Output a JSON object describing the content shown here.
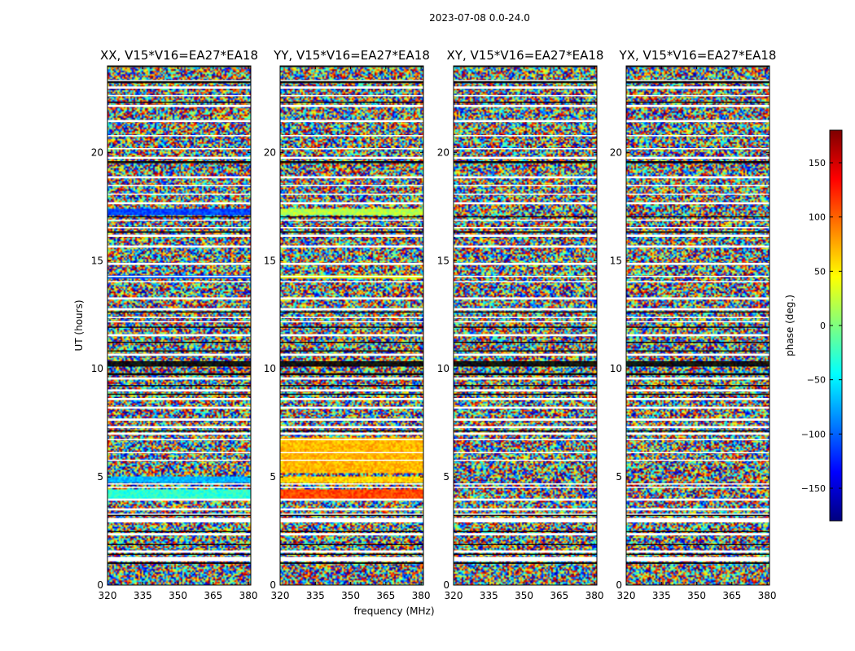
{
  "suptitle": "2023-07-08 0.0-24.0",
  "chart_data": {
    "type": "heatmap",
    "panels": [
      {
        "title": "XX, V15*V16=EA27*EA18"
      },
      {
        "title": "YY, V15*V16=EA27*EA18"
      },
      {
        "title": "XY, V15*V16=EA27*EA18"
      },
      {
        "title": "YX, V15*V16=EA27*EA18"
      }
    ],
    "xlabel": "frequency (MHz)",
    "ylabel": "UT (hours)",
    "xlim": [
      320,
      381
    ],
    "ylim": [
      0,
      24
    ],
    "xticks": [
      320,
      335,
      350,
      365,
      380
    ],
    "yticks": [
      0,
      5,
      10,
      15,
      20
    ],
    "colorbar": {
      "label": "phase (deg.)",
      "range": [
        -180,
        180
      ],
      "ticks": [
        150,
        100,
        50,
        0,
        -50,
        -100,
        -150
      ],
      "tick_labels": [
        "150",
        "100",
        "50",
        "0",
        "−50",
        "−100",
        "−150"
      ],
      "colormap": [
        "#00007f",
        "#0000ff",
        "#007fff",
        "#00ffff",
        "#7fff7f",
        "#ffff00",
        "#ff7f00",
        "#ff0000",
        "#7f0000"
      ]
    },
    "flagged_bands_hours": [
      [
        0,
        0.02
      ],
      [
        1.1,
        1.3
      ],
      [
        1.5,
        1.6
      ],
      [
        2.3,
        2.4
      ],
      [
        2.9,
        3.1
      ],
      [
        3.25,
        3.3
      ],
      [
        3.45,
        3.55
      ],
      [
        3.9,
        4.0
      ],
      [
        4.5,
        4.55
      ],
      [
        4.65,
        4.7
      ],
      [
        5.75,
        5.8
      ],
      [
        6.1,
        6.15
      ],
      [
        6.7,
        6.75
      ],
      [
        6.95,
        7.05
      ],
      [
        7.25,
        7.35
      ],
      [
        7.6,
        7.7
      ],
      [
        8.15,
        8.25
      ],
      [
        8.55,
        8.65
      ],
      [
        8.95,
        9.05
      ],
      [
        9.5,
        9.6
      ],
      [
        10.6,
        10.7
      ],
      [
        11.5,
        11.6
      ],
      [
        12.15,
        12.2
      ],
      [
        12.35,
        12.4
      ],
      [
        12.7,
        12.8
      ],
      [
        13.2,
        13.3
      ],
      [
        14.0,
        14.05
      ],
      [
        14.25,
        14.3
      ],
      [
        14.8,
        14.9
      ],
      [
        15.6,
        15.7
      ],
      [
        16.1,
        16.2
      ],
      [
        16.5,
        16.55
      ],
      [
        16.85,
        16.9
      ],
      [
        17.6,
        17.7
      ],
      [
        18.05,
        18.1
      ],
      [
        18.45,
        18.5
      ],
      [
        18.8,
        18.9
      ],
      [
        19.7,
        19.8
      ],
      [
        20.15,
        20.2
      ],
      [
        20.75,
        20.8
      ],
      [
        21.4,
        21.5
      ],
      [
        22.1,
        22.2
      ],
      [
        22.6,
        22.65
      ],
      [
        22.95,
        23.05
      ],
      [
        23.3,
        23.35
      ],
      [
        24.0,
        24.0
      ]
    ],
    "dark_bands_hours": [
      [
        0.98,
        1.05
      ],
      [
        1.4,
        1.45
      ],
      [
        1.85,
        1.9
      ],
      [
        2.45,
        2.5
      ],
      [
        3.2,
        3.25
      ],
      [
        7.1,
        7.15
      ],
      [
        8.8,
        8.85
      ],
      [
        9.2,
        9.25
      ],
      [
        9.7,
        9.8
      ],
      [
        10.1,
        10.35
      ],
      [
        10.8,
        10.85
      ],
      [
        11.2,
        11.25
      ],
      [
        11.9,
        11.95
      ],
      [
        12.6,
        12.65
      ],
      [
        16.3,
        16.35
      ],
      [
        17.0,
        17.05
      ],
      [
        19.5,
        19.6
      ],
      [
        22.3,
        22.35
      ],
      [
        23.2,
        23.3
      ],
      [
        23.95,
        24.0
      ]
    ],
    "smooth_bands_hours": [
      {
        "panel": 0,
        "range": [
          17.1,
          17.4
        ],
        "phase": -110
      },
      {
        "panel": 0,
        "range": [
          14.2,
          14.35
        ],
        "phase": -100
      },
      {
        "panel": 0,
        "range": [
          4.75,
          5.0
        ],
        "phase": -70
      },
      {
        "panel": 0,
        "range": [
          4.0,
          4.4
        ],
        "phase": -30
      },
      {
        "panel": 1,
        "range": [
          17.1,
          17.4
        ],
        "phase": 20
      },
      {
        "panel": 1,
        "range": [
          14.2,
          14.35
        ],
        "phase": 40
      },
      {
        "panel": 1,
        "range": [
          4.75,
          5.0
        ],
        "phase": 60
      },
      {
        "panel": 1,
        "range": [
          4.0,
          4.4
        ],
        "phase": 110
      },
      {
        "panel": 1,
        "range": [
          5.2,
          6.8
        ],
        "phase": 70
      }
    ]
  }
}
